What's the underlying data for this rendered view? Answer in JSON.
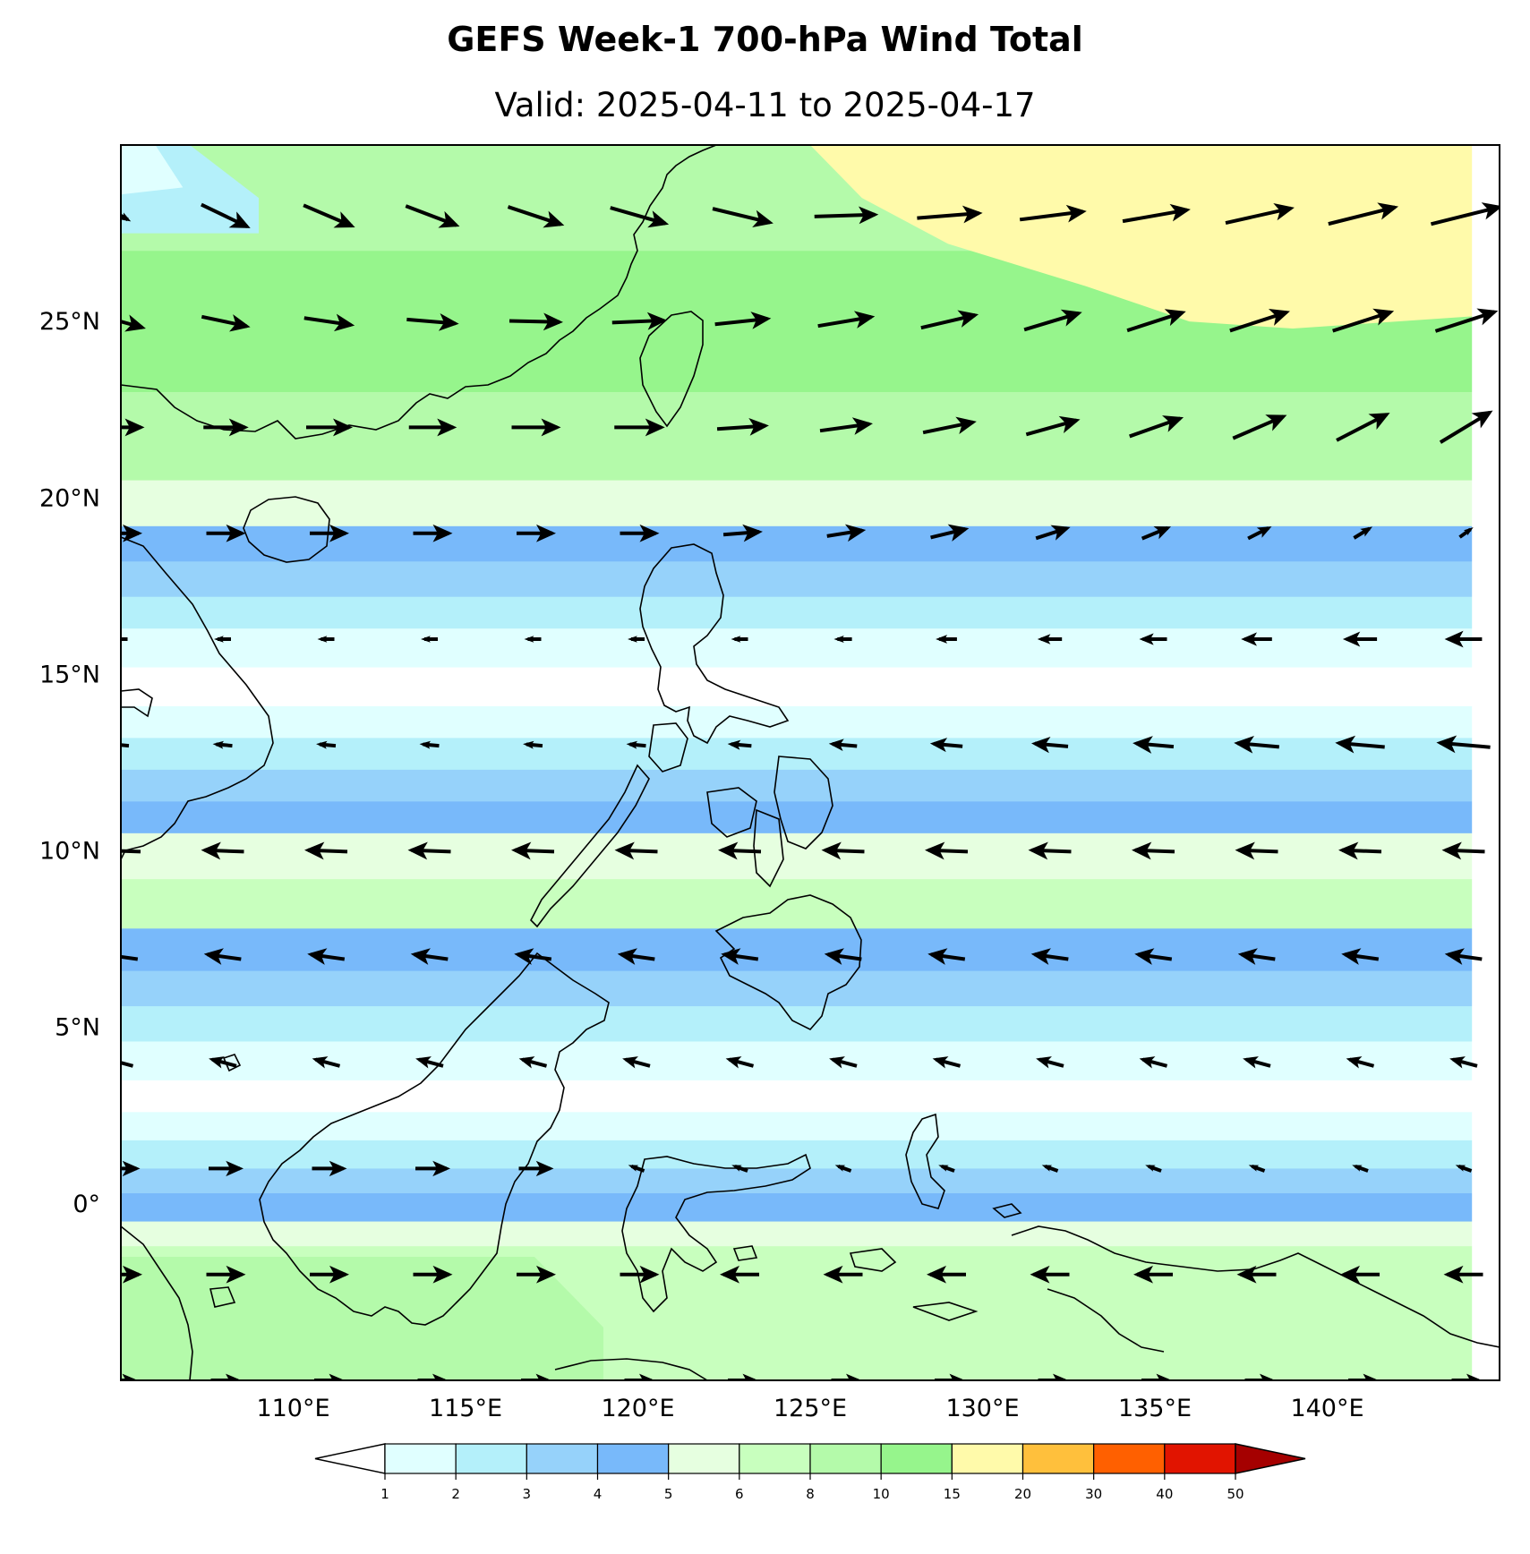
{
  "title": "GEFS Week-1 700-hPa Wind Total",
  "subtitle": "Valid: 2025-04-11 to 2025-04-17",
  "map": {
    "lon_range": [
      105.0,
      145.0
    ],
    "lat_range": [
      -5.0,
      30.0
    ],
    "lon_ticks": [
      {
        "value": 110,
        "label": "110°E"
      },
      {
        "value": 115,
        "label": "115°E"
      },
      {
        "value": 120,
        "label": "120°E"
      },
      {
        "value": 125,
        "label": "125°E"
      },
      {
        "value": 130,
        "label": "130°E"
      },
      {
        "value": 135,
        "label": "135°E"
      },
      {
        "value": 140,
        "label": "140°E"
      }
    ],
    "lat_ticks": [
      {
        "value": 25,
        "label": "25°N"
      },
      {
        "value": 20,
        "label": "20°N"
      },
      {
        "value": 15,
        "label": "15°N"
      },
      {
        "value": 10,
        "label": "10°N"
      },
      {
        "value": 5,
        "label": "5°N"
      },
      {
        "value": 0,
        "label": "0°"
      }
    ],
    "wind_vectors_lat_rows": [
      28,
      25,
      22,
      19,
      16,
      13,
      10,
      7,
      4,
      1,
      -2,
      -5
    ],
    "wind_vectors_lon_cols": [
      105,
      108,
      111,
      114,
      117,
      120,
      123,
      126,
      129,
      132,
      135,
      138,
      141,
      144
    ]
  },
  "colorbar": {
    "levels": [
      "1",
      "2",
      "3",
      "4",
      "5",
      "6",
      "8",
      "10",
      "15",
      "20",
      "30",
      "40",
      "50"
    ],
    "colors": [
      "#e0ffff",
      "#b4f0fa",
      "#96d2fa",
      "#78b9fa",
      "#e6ffe0",
      "#c8ffbe",
      "#b4faaa",
      "#96f58c",
      "#fffaaa",
      "#ffc03c",
      "#ff6000",
      "#e11400",
      "#a50000"
    ],
    "under_color": "#ffffff",
    "over_color": "#a50000"
  }
}
